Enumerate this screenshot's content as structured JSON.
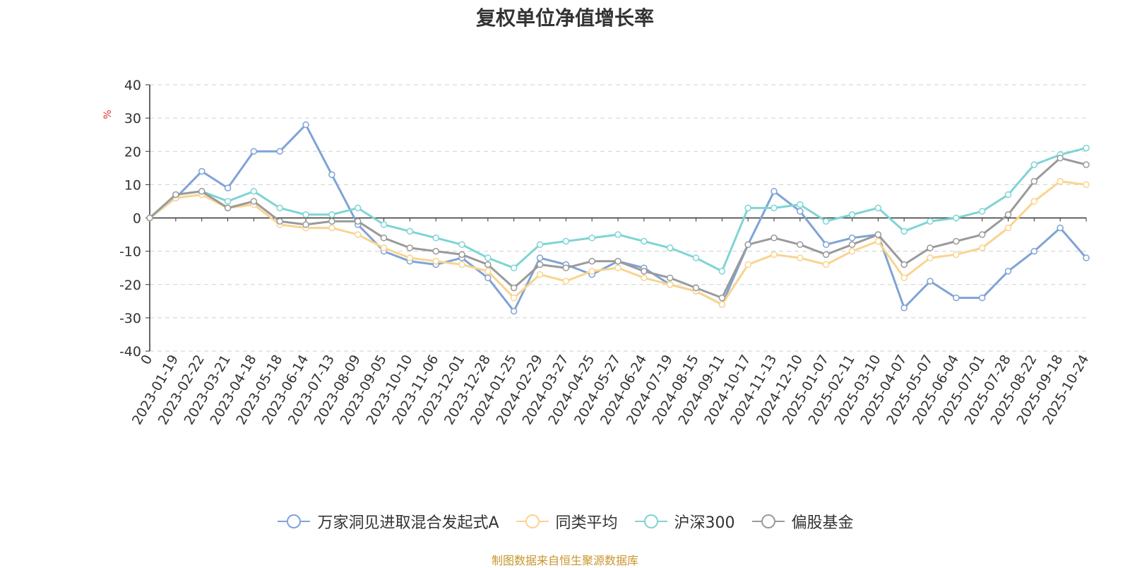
{
  "chart_data": {
    "type": "line",
    "title": "复权单位净值增长率",
    "ylabel": "%",
    "ylim": [
      -40,
      40
    ],
    "yticks": [
      40,
      30,
      20,
      10,
      0,
      -10,
      -20,
      -30,
      -40
    ],
    "x_tick_labels": [
      "0",
      "2023-01-19",
      "2023-02-22",
      "2023-03-21",
      "2023-04-18",
      "2023-05-18",
      "2023-06-14",
      "2023-07-13",
      "2023-08-09",
      "2023-09-05",
      "2023-10-10",
      "2023-11-06",
      "2023-12-01",
      "2023-12-28",
      "2024-01-25",
      "2024-02-29",
      "2024-03-27",
      "2024-04-25",
      "2024-05-27",
      "2024-06-24",
      "2024-07-19",
      "2024-08-15",
      "2024-09-11",
      "2024-10-17",
      "2024-11-13",
      "2024-12-10",
      "2025-01-07",
      "2025-02-11",
      "2025-03-10",
      "2025-04-07",
      "2025-05-07",
      "2025-06-04",
      "2025-07-01",
      "2025-07-28",
      "2025-08-22",
      "2025-09-18",
      "2025-10-24"
    ],
    "grid": "horizontal-dashed",
    "legend_position": "bottom",
    "x": [
      "0",
      "2023-01-19",
      "2023-02-22",
      "2023-03-21",
      "2023-04-18",
      "2023-05-18",
      "2023-06-14",
      "2023-07-13",
      "2023-08-09",
      "2023-09-05",
      "2023-10-10",
      "2023-11-06",
      "2023-12-01",
      "2023-12-28",
      "2024-01-25",
      "2024-02-29",
      "2024-03-27",
      "2024-04-25",
      "2024-05-27",
      "2024-06-24",
      "2024-07-19",
      "2024-08-15",
      "2024-09-11",
      "2024-10-17",
      "2024-11-13",
      "2024-12-10",
      "2025-01-07",
      "2025-02-11",
      "2025-03-10",
      "2025-04-07",
      "2025-05-07",
      "2025-06-04",
      "2025-07-01",
      "2025-07-28",
      "2025-08-22",
      "2025-09-18",
      "2025-10-24"
    ],
    "series": [
      {
        "name": "万家洞见进取混合发起式A",
        "color": "#7fa3d6",
        "values": [
          0,
          6,
          14,
          9,
          20,
          20,
          28,
          13,
          -2,
          -10,
          -13,
          -14,
          -12,
          -18,
          -28,
          -12,
          -14,
          -17,
          -13,
          -15,
          -20,
          -22,
          -26,
          -8,
          8,
          2,
          -8,
          -6,
          -5,
          -27,
          -19,
          -24,
          -24,
          -16,
          -10,
          -3,
          -12
        ]
      },
      {
        "name": "同类平均",
        "color": "#f9d48f",
        "values": [
          0,
          6,
          7,
          3,
          4,
          -2,
          -3,
          -3,
          -5,
          -9,
          -12,
          -13,
          -14,
          -16,
          -24,
          -17,
          -19,
          -16,
          -15,
          -18,
          -20,
          -22,
          -26,
          -14,
          -11,
          -12,
          -14,
          -10,
          -7,
          -18,
          -12,
          -11,
          -9,
          -3,
          5,
          11,
          10
        ]
      },
      {
        "name": "沪深300",
        "color": "#7fd4d4",
        "values": [
          0,
          7,
          8,
          5,
          8,
          3,
          1,
          1,
          3,
          -2,
          -4,
          -6,
          -8,
          -12,
          -15,
          -8,
          -7,
          -6,
          -5,
          -7,
          -9,
          -12,
          -16,
          3,
          3,
          4,
          -1,
          1,
          3,
          -4,
          -1,
          0,
          2,
          7,
          16,
          19,
          21
        ]
      },
      {
        "name": "偏股基金",
        "color": "#9a9a9a",
        "values": [
          0,
          7,
          8,
          3,
          5,
          -1,
          -2,
          -1,
          -1,
          -6,
          -9,
          -10,
          -11,
          -14,
          -21,
          -14,
          -15,
          -13,
          -13,
          -16,
          -18,
          -21,
          -24,
          -8,
          -6,
          -8,
          -11,
          -8,
          -5,
          -14,
          -9,
          -7,
          -5,
          1,
          11,
          18,
          16
        ]
      }
    ]
  },
  "footer": {
    "note": "制图数据来自恒生聚源数据库"
  }
}
